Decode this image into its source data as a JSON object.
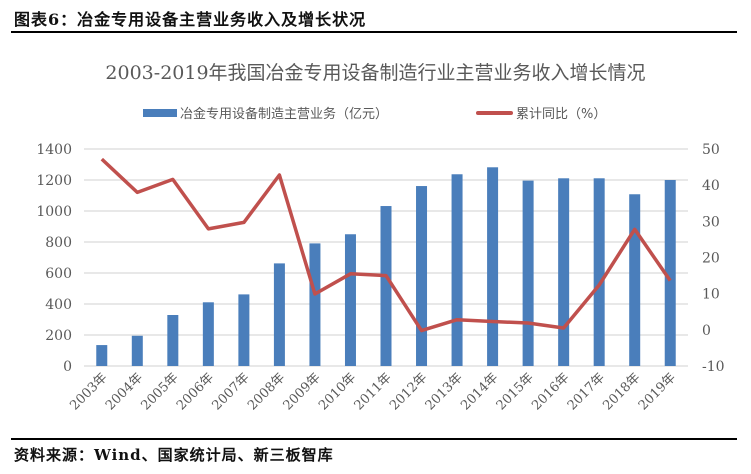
{
  "header": {
    "figure_label": "图表6：冶金专用设备主营业务收入及增长状况"
  },
  "footer": {
    "source": "资料来源：Wind、国家统计局、新三板智库"
  },
  "colors": {
    "bar": "#4a7ebb",
    "line": "#c0504d",
    "grid": "#d9d9d9",
    "axis_text": "#595959"
  },
  "chart_data": {
    "type": "bar+line",
    "title": "2003-2019年我国冶金专用设备制造行业主营业务收入增长情况",
    "categories": [
      "2003年",
      "2004年",
      "2005年",
      "2006年",
      "2007年",
      "2008年",
      "2009年",
      "2010年",
      "2011年",
      "2012年",
      "2013年",
      "2014年",
      "2015年",
      "2016年",
      "2017年",
      "2018年",
      "2019年"
    ],
    "series": [
      {
        "name": "冶金专用设备制造主营业务（亿元）",
        "type": "bar",
        "axis": "left",
        "values": [
          135,
          195,
          329,
          411,
          462,
          662,
          791,
          850,
          1032,
          1161,
          1237,
          1282,
          1196,
          1211,
          1211,
          1108,
          1200
        ]
      },
      {
        "name": "累计同比（%）",
        "type": "line",
        "axis": "right",
        "values": [
          47.2,
          38.0,
          41.6,
          27.9,
          29.7,
          42.8,
          9.9,
          15.5,
          15.0,
          -0.2,
          2.8,
          2.3,
          1.9,
          0.5,
          12.4,
          27.8,
          13.6
        ]
      }
    ],
    "left_axis": {
      "ylim": [
        0,
        1400
      ],
      "ticks": [
        "0",
        "200",
        "400",
        "600",
        "800",
        "1000",
        "1200",
        "1400"
      ]
    },
    "right_axis": {
      "ylim": [
        -10,
        50
      ],
      "ticks": [
        "-10",
        "0",
        "10",
        "20",
        "30",
        "40",
        "50"
      ]
    },
    "xlabel": "",
    "ylabel": "",
    "grid": true,
    "legend_position": "top"
  }
}
